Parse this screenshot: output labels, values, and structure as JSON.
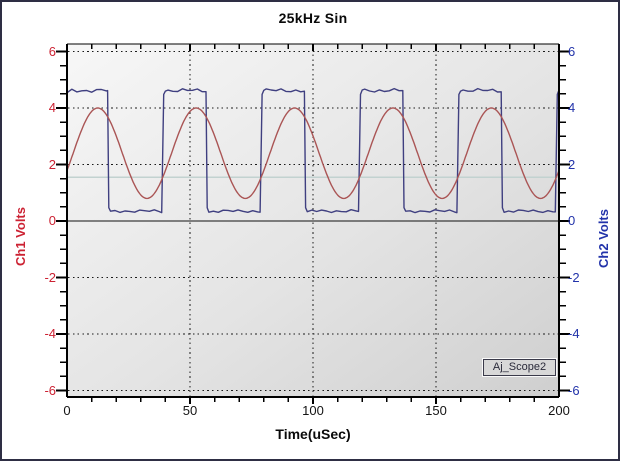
{
  "window": {
    "border_color": "#2e2e44",
    "outer_background": "#ffffff"
  },
  "chart_data": {
    "type": "line",
    "title": "25kHz Sin",
    "xlabel": "Time(uSec)",
    "x_range": [
      0,
      200
    ],
    "x_major_ticks": [
      0,
      50,
      100,
      150,
      200
    ],
    "x_minor_step_usec": 10,
    "grid": "dotted",
    "legend_position": "none",
    "axes": {
      "left": {
        "label": "Ch1 Volts",
        "color": "#cc2233",
        "range": [
          -6.25,
          6.25
        ],
        "tick_values": [
          6,
          4,
          2,
          0,
          -2,
          -4,
          -6
        ],
        "minor_step_v": 0.5
      },
      "right": {
        "label": "Ch2 Volts",
        "color": "#2233aa",
        "range": [
          -6.25,
          6.25
        ],
        "tick_values": [
          6,
          4,
          2,
          0,
          -2,
          -4,
          -6
        ],
        "minor_step_v": 0.5
      }
    },
    "series": [
      {
        "name": "Ch1 sine",
        "shape": "sine",
        "color": "#aa5555",
        "offset_v": 2.4,
        "amplitude_v": 1.6,
        "period_usec": 40,
        "peak_at_usec": 12.5,
        "max_v": 4.0,
        "min_v": 0.8
      },
      {
        "name": "Ch2 square",
        "shape": "square",
        "color": "#3f3f80",
        "high_v": 4.62,
        "low_v": 0.35,
        "period_usec": 40,
        "high_intervals_usec": [
          [
            0,
            16.5
          ],
          [
            39,
            56.5
          ],
          [
            79,
            96.5
          ],
          [
            119,
            136.5
          ],
          [
            159,
            176.5
          ],
          [
            199,
            200
          ]
        ]
      }
    ],
    "reference_lines": [
      {
        "name": "zero-line",
        "v": 0,
        "style": "solid",
        "color": "#111111"
      },
      {
        "name": "trigger-level",
        "v": 1.55,
        "style": "solid",
        "color": "#c2d2d0"
      }
    ],
    "annotation_box": "Aj_Scope2",
    "background": {
      "plot_gradient_start": "#f7f7f7",
      "plot_gradient_end": "#cfcfcf"
    }
  }
}
